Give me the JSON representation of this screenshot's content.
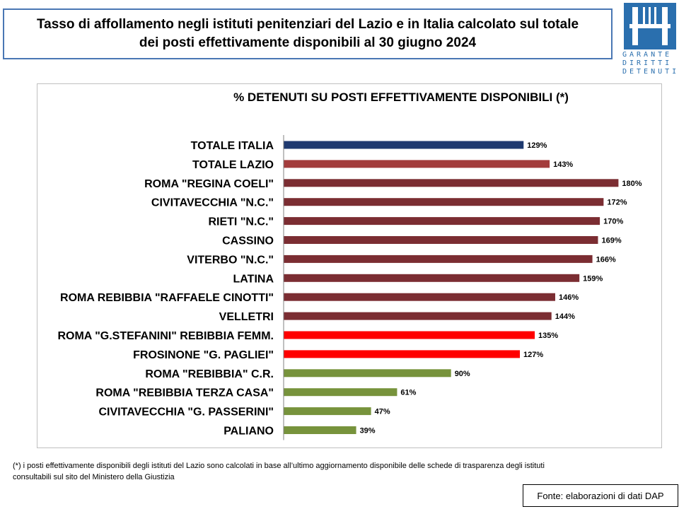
{
  "header": {
    "title_line1": "Tasso di affollamento negli istituti penitenziari del Lazio e in Italia calcolato sul totale",
    "title_line2": "dei posti effettivamente disponibili al 30 giugno 2024"
  },
  "logo": {
    "text_line1": "GARANTE",
    "text_line2": "DIRITTI",
    "text_line3": "DETENUTI",
    "color": "#2a6fae"
  },
  "chart_data": {
    "type": "bar",
    "orientation": "horizontal",
    "title": "% DETENUTI SU POSTI EFFETTIVAMENTE DISPONIBILI (*)",
    "categories": [
      "TOTALE ITALIA",
      "TOTALE LAZIO",
      "ROMA \"REGINA COELI\"",
      "CIVITAVECCHIA \"N.C.\"",
      "RIETI \"N.C.\"",
      "CASSINO",
      "VITERBO \"N.C.\"",
      "LATINA",
      "ROMA REBIBBIA \"RAFFAELE CINOTTI\"",
      "VELLETRI",
      "ROMA \"G.STEFANINI\" REBIBBIA FEMM.",
      "FROSINONE \"G. PAGLIEI\"",
      "ROMA \"REBIBBIA\" C.R.",
      "ROMA \"REBIBBIA TERZA CASA\"",
      "CIVITAVECCHIA \"G. PASSERINI\"",
      "PALIANO"
    ],
    "values": [
      129,
      143,
      180,
      172,
      170,
      169,
      166,
      159,
      146,
      144,
      135,
      127,
      90,
      61,
      47,
      39
    ],
    "value_labels": [
      "129%",
      "143%",
      "180%",
      "172%",
      "170%",
      "169%",
      "166%",
      "159%",
      "146%",
      "144%",
      "135%",
      "127%",
      "90%",
      "61%",
      "47%",
      "39%"
    ],
    "colors": [
      "#1f3a70",
      "#a33c3c",
      "#7b2d32",
      "#7b2d32",
      "#7b2d32",
      "#7b2d32",
      "#7b2d32",
      "#7b2d32",
      "#7b2d32",
      "#7b2d32",
      "#ff0000",
      "#ff0000",
      "#77933c",
      "#77933c",
      "#77933c",
      "#77933c"
    ],
    "xlim": [
      0,
      180
    ],
    "grid": false
  },
  "footnote": {
    "line1": "(*) i posti effettivamente disponibili  degli istituti del Lazio sono calcolati in base all’ultimo aggiornamento disponibile  delle schede di trasparenza degli istituti",
    "line2": "consultabili sul sito del Ministero della Giustizia"
  },
  "source": "Fonte: elaborazioni di dati DAP"
}
